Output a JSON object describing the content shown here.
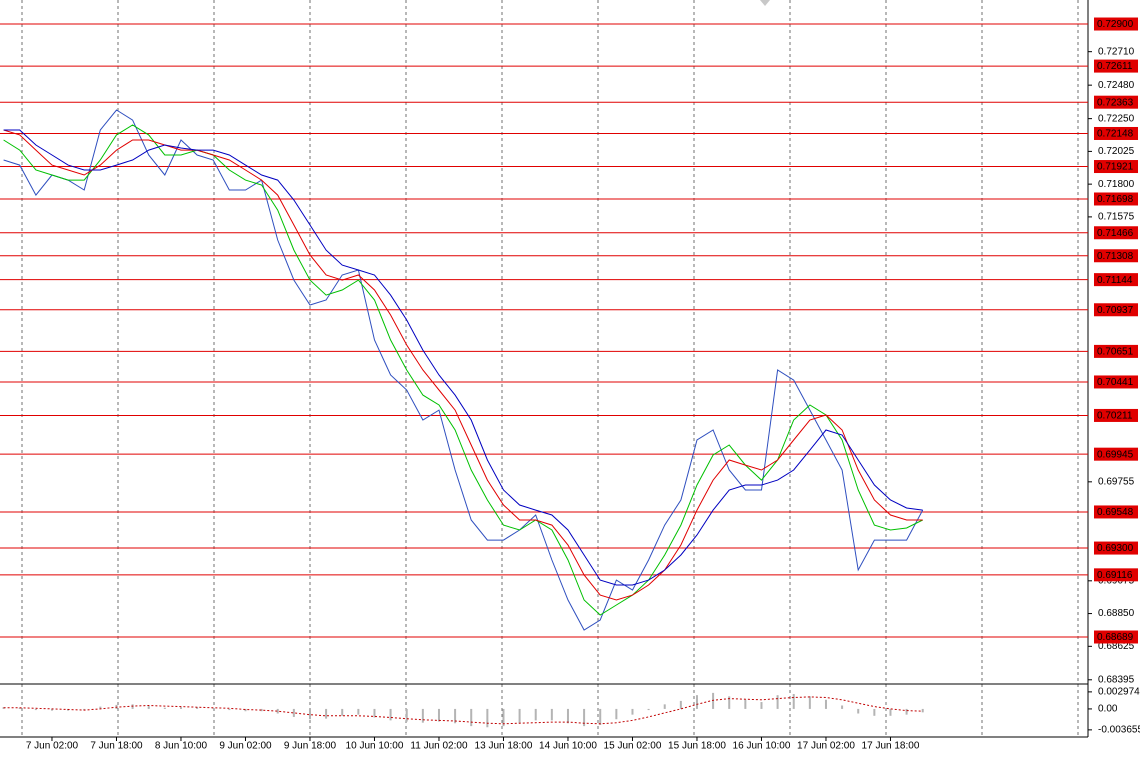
{
  "chart_data": [
    {
      "type": "line",
      "categories": [
        null,
        null,
        null,
        "7 Jun 02:00",
        null,
        null,
        null,
        "7 Jun 18:00",
        null,
        null,
        null,
        "8 Jun 10:00",
        null,
        null,
        null,
        "9 Jun 02:00",
        null,
        null,
        null,
        "9 Jun 18:00",
        null,
        null,
        null,
        "10 Jun 10:00",
        null,
        null,
        null,
        "11 Jun 02:00",
        null,
        null,
        null,
        "13 Jun 18:00",
        null,
        null,
        null,
        "14 Jun 10:00",
        null,
        null,
        null,
        "15 Jun 02:00",
        null,
        null,
        null,
        "15 Jun 18:00",
        null,
        null,
        null,
        "16 Jun 10:00",
        null,
        null,
        null,
        "17 Jun 02:00",
        null,
        null,
        null,
        "17 Jun 18:00",
        null,
        null
      ],
      "series": [
        {
          "color": "#2f4fbf",
          "values": [
            0.71966,
            0.71931,
            0.71725,
            0.71863,
            0.71828,
            0.7176,
            0.72172,
            0.72309,
            0.7224,
            0.72,
            0.71863,
            0.72103,
            0.72,
            0.71966,
            0.7176,
            0.7176,
            0.71828,
            0.71416,
            0.71141,
            0.7097,
            0.71004,
            0.71176,
            0.7121,
            0.70729,
            0.70489,
            0.70386,
            0.7018,
            0.70248,
            0.69836,
            0.69493,
            0.69355,
            0.69355,
            0.69424,
            0.69527,
            0.69218,
            0.68943,
            0.68737,
            0.68806,
            0.6908,
            0.69012,
            0.69218,
            0.69458,
            0.6963,
            0.70042,
            0.70111,
            0.69836,
            0.69699,
            0.69699,
            0.70523,
            0.70454,
            0.70248,
            0.70042,
            0.69836,
            0.69149,
            0.69355,
            0.69355,
            0.69355,
            0.69561
          ]
        },
        {
          "color": "#00c000",
          "values": [
            0.72103,
            0.72034,
            0.71897,
            0.71863,
            0.71828,
            0.71828,
            0.71966,
            0.72138,
            0.72206,
            0.72138,
            0.72,
            0.72,
            0.72034,
            0.72,
            0.71897,
            0.71828,
            0.71794,
            0.71622,
            0.71347,
            0.71141,
            0.71038,
            0.71073,
            0.71141,
            0.71004,
            0.70729,
            0.70523,
            0.70351,
            0.70283,
            0.70111,
            0.69836,
            0.6963,
            0.69458,
            0.69424,
            0.69493,
            0.69424,
            0.69218,
            0.68943,
            0.6884,
            0.68909,
            0.68977,
            0.6908,
            0.69252,
            0.69458,
            0.69733,
            0.69939,
            0.70008,
            0.6987,
            0.69767,
            0.69905,
            0.7018,
            0.70283,
            0.70214,
            0.70042,
            0.69699,
            0.69458,
            0.69424,
            0.69438,
            0.69493
          ]
        },
        {
          "color": "#e00000",
          "values": [
            0.72172,
            0.72138,
            0.72034,
            0.71931,
            0.71897,
            0.71863,
            0.71931,
            0.72034,
            0.72103,
            0.72103,
            0.72069,
            0.72034,
            0.72034,
            0.72,
            0.71966,
            0.71897,
            0.71828,
            0.71725,
            0.71519,
            0.71313,
            0.71176,
            0.71141,
            0.71176,
            0.71073,
            0.70901,
            0.70695,
            0.70523,
            0.70386,
            0.70248,
            0.70008,
            0.69767,
            0.69596,
            0.69493,
            0.69493,
            0.69458,
            0.69321,
            0.69115,
            0.68977,
            0.68943,
            0.68977,
            0.69046,
            0.69149,
            0.69321,
            0.69561,
            0.69767,
            0.69905,
            0.6987,
            0.69836,
            0.69905,
            0.70042,
            0.7018,
            0.70214,
            0.70111,
            0.69836,
            0.6963,
            0.69527,
            0.69493,
            0.69493
          ]
        },
        {
          "color": "#0000c0",
          "values": [
            0.72172,
            0.72172,
            0.72069,
            0.72,
            0.71931,
            0.71897,
            0.71897,
            0.71931,
            0.71966,
            0.72034,
            0.72069,
            0.72048,
            0.72034,
            0.72034,
            0.72,
            0.71931,
            0.71863,
            0.71828,
            0.71691,
            0.71519,
            0.71347,
            0.71244,
            0.7121,
            0.71176,
            0.71038,
            0.70867,
            0.7066,
            0.70489,
            0.70351,
            0.7018,
            0.69905,
            0.69699,
            0.69596,
            0.69561,
            0.69527,
            0.69424,
            0.69252,
            0.6908,
            0.69046,
            0.69046,
            0.6908,
            0.69149,
            0.69252,
            0.6939,
            0.69561,
            0.69699,
            0.69733,
            0.69733,
            0.69767,
            0.69836,
            0.69973,
            0.70111,
            0.70077,
            0.69905,
            0.69733,
            0.6963,
            0.69575,
            0.69561
          ]
        }
      ],
      "ylim": [
        0.68373,
        0.73065
      ],
      "yticks": [
        {
          "value": 0.7271,
          "label": "0.72710"
        },
        {
          "value": 0.7248,
          "label": "0.72480"
        },
        {
          "value": 0.7225,
          "label": "0.72250"
        },
        {
          "value": 0.72025,
          "label": "0.72025"
        },
        {
          "value": 0.718,
          "label": "0.71800"
        },
        {
          "value": 0.71575,
          "label": "0.71575"
        },
        {
          "value": 0.69755,
          "label": "0.69755"
        },
        {
          "value": 0.69075,
          "label": "0.69075"
        },
        {
          "value": 0.6885,
          "label": "0.68850"
        },
        {
          "value": 0.68625,
          "label": "0.68625"
        },
        {
          "value": 0.68395,
          "label": "0.68395"
        }
      ],
      "levels": [
        {
          "value": 0.729,
          "label": "0.72900"
        },
        {
          "value": 0.72611,
          "label": "0.72611"
        },
        {
          "value": 0.72363,
          "label": "0.72363"
        },
        {
          "value": 0.72148,
          "label": "0.72148"
        },
        {
          "value": 0.71921,
          "label": "0.71921"
        },
        {
          "value": 0.71698,
          "label": "0.71698"
        },
        {
          "value": 0.71466,
          "label": "0.71466"
        },
        {
          "value": 0.71308,
          "label": "0.71308"
        },
        {
          "value": 0.71144,
          "label": "0.71144"
        },
        {
          "value": 0.70937,
          "label": "0.70937"
        },
        {
          "value": 0.70651,
          "label": "0.70651"
        },
        {
          "value": 0.70441,
          "label": "0.70441"
        },
        {
          "value": 0.70211,
          "label": "0.70211"
        },
        {
          "value": 0.69945,
          "label": "0.69945"
        },
        {
          "value": 0.69548,
          "label": "0.69548"
        },
        {
          "value": 0.693,
          "label": "0.69300"
        },
        {
          "value": 0.69116,
          "label": "0.69116"
        },
        {
          "value": 0.68689,
          "label": "0.68689"
        }
      ],
      "level_color": "#e00000"
    },
    {
      "type": "bar",
      "series": [
        {
          "type": "bar",
          "color": "#b4b4b4",
          "values": [
            0.0003,
            0.0002,
            -0.0002,
            -0.0003,
            -0.0003,
            -0.0002,
            0.0004,
            0.0007,
            0.0008,
            0.0005,
            0.0002,
            0.0003,
            0.0003,
            0.0001,
            -0.0002,
            -0.0004,
            -0.0004,
            -0.0008,
            -0.0014,
            -0.0018,
            -0.0017,
            -0.0012,
            -0.001,
            -0.0015,
            -0.002,
            -0.0022,
            -0.0024,
            -0.0022,
            -0.0025,
            -0.003,
            -0.0032,
            -0.003,
            -0.0025,
            -0.002,
            -0.002,
            -0.0025,
            -0.003,
            -0.0028,
            -0.0018,
            -0.001,
            -0.0002,
            0.0008,
            0.0014,
            0.0024,
            0.0028,
            0.0022,
            0.0016,
            0.0012,
            0.0024,
            0.0026,
            0.0022,
            0.0016,
            0.0006,
            -0.0008,
            -0.0012,
            -0.0012,
            -0.001,
            -0.0006
          ]
        },
        {
          "type": "line",
          "color": "#c00000",
          "values": [
            0.0002,
            0.0002,
            0.0001,
            0,
            -0.0001,
            -0.0002,
            0,
            0.0003,
            0.0005,
            0.0006,
            0.0005,
            0.0004,
            0.0003,
            0.0002,
            0.0001,
            -0.0001,
            -0.0002,
            -0.0004,
            -0.0007,
            -0.001,
            -0.0012,
            -0.0012,
            -0.0012,
            -0.0013,
            -0.0015,
            -0.0017,
            -0.0019,
            -0.002,
            -0.0021,
            -0.0023,
            -0.0025,
            -0.0026,
            -0.0025,
            -0.0024,
            -0.0023,
            -0.0023,
            -0.0025,
            -0.0026,
            -0.0024,
            -0.002,
            -0.0014,
            -0.0007,
            0,
            0.0008,
            0.0015,
            0.0018,
            0.0017,
            0.0016,
            0.0018,
            0.002,
            0.0021,
            0.002,
            0.0016,
            0.001,
            0.0004,
            0,
            -0.0003,
            -0.0004
          ]
        }
      ],
      "ylim": [
        -0.0049,
        0.004
      ],
      "yticks": [
        {
          "value": 0.002974,
          "label": "0.002974"
        },
        {
          "value": 0,
          "label": "0.00"
        },
        {
          "value": -0.003655,
          "label": "-0.003655"
        }
      ]
    }
  ]
}
